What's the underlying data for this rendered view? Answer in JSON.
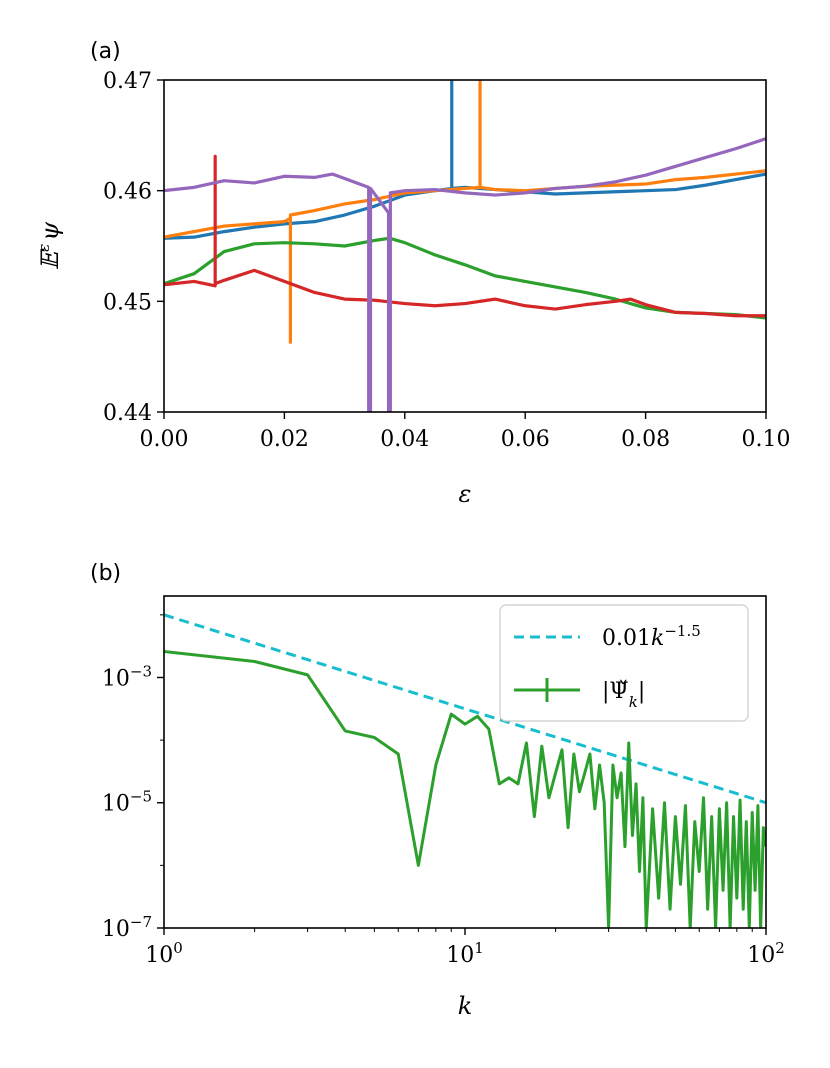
{
  "chart_data": [
    {
      "type": "line",
      "panel_label": "(a)",
      "xlabel": "ε",
      "ylabel": "𝔼^ε ψ",
      "xlim": [
        0.0,
        0.1
      ],
      "ylim": [
        0.44,
        0.47
      ],
      "x_ticks": [
        "0.00",
        "0.02",
        "0.04",
        "0.06",
        "0.08",
        "0.10"
      ],
      "x_tick_values": [
        0.0,
        0.02,
        0.04,
        0.06,
        0.08,
        0.1
      ],
      "y_ticks": [
        "0.44",
        "0.45",
        "0.46",
        "0.47"
      ],
      "y_tick_values": [
        0.44,
        0.45,
        0.46,
        0.47
      ],
      "series": [
        {
          "color": "#1f77b4",
          "points": [
            [
              0.0,
              0.4557
            ],
            [
              0.005,
              0.4558
            ],
            [
              0.01,
              0.4563
            ],
            [
              0.015,
              0.4567
            ],
            [
              0.02,
              0.457
            ],
            [
              0.025,
              0.4572
            ],
            [
              0.03,
              0.4578
            ],
            [
              0.035,
              0.4586
            ],
            [
              0.04,
              0.4596
            ],
            [
              0.045,
              0.46
            ],
            [
              0.0478,
              0.4602
            ],
            [
              0.0478,
              0.475
            ],
            [
              0.0478,
              0.4602
            ],
            [
              0.05,
              0.4603
            ],
            [
              0.055,
              0.4601
            ],
            [
              0.06,
              0.4599
            ],
            [
              0.065,
              0.4597
            ],
            [
              0.07,
              0.4598
            ],
            [
              0.075,
              0.4599
            ],
            [
              0.08,
              0.46
            ],
            [
              0.085,
              0.4601
            ],
            [
              0.09,
              0.4605
            ],
            [
              0.095,
              0.461
            ],
            [
              0.1,
              0.4615
            ]
          ]
        },
        {
          "color": "#ff7f0e",
          "points": [
            [
              0.0,
              0.4558
            ],
            [
              0.005,
              0.4563
            ],
            [
              0.01,
              0.4568
            ],
            [
              0.015,
              0.457
            ],
            [
              0.02,
              0.4572
            ],
            [
              0.021,
              0.4575
            ],
            [
              0.021,
              0.4463
            ],
            [
              0.021,
              0.4578
            ],
            [
              0.025,
              0.4582
            ],
            [
              0.03,
              0.4588
            ],
            [
              0.035,
              0.4592
            ],
            [
              0.04,
              0.4598
            ],
            [
              0.045,
              0.46
            ],
            [
              0.05,
              0.4602
            ],
            [
              0.0525,
              0.4603
            ],
            [
              0.0525,
              0.475
            ],
            [
              0.0525,
              0.4603
            ],
            [
              0.055,
              0.4601
            ],
            [
              0.06,
              0.46
            ],
            [
              0.065,
              0.4602
            ],
            [
              0.07,
              0.4604
            ],
            [
              0.075,
              0.4605
            ],
            [
              0.08,
              0.4606
            ],
            [
              0.085,
              0.461
            ],
            [
              0.09,
              0.4612
            ],
            [
              0.095,
              0.4615
            ],
            [
              0.1,
              0.4618
            ]
          ]
        },
        {
          "color": "#2ca02c",
          "points": [
            [
              0.0,
              0.4516
            ],
            [
              0.005,
              0.4525
            ],
            [
              0.01,
              0.4545
            ],
            [
              0.015,
              0.4552
            ],
            [
              0.02,
              0.4553
            ],
            [
              0.025,
              0.4552
            ],
            [
              0.03,
              0.455
            ],
            [
              0.035,
              0.4555
            ],
            [
              0.0375,
              0.4557
            ],
            [
              0.04,
              0.4553
            ],
            [
              0.045,
              0.4542
            ],
            [
              0.05,
              0.4533
            ],
            [
              0.055,
              0.4523
            ],
            [
              0.06,
              0.4518
            ],
            [
              0.065,
              0.4513
            ],
            [
              0.07,
              0.4508
            ],
            [
              0.075,
              0.4502
            ],
            [
              0.08,
              0.4494
            ],
            [
              0.085,
              0.449
            ],
            [
              0.09,
              0.4489
            ],
            [
              0.095,
              0.4488
            ],
            [
              0.1,
              0.4485
            ]
          ]
        },
        {
          "color": "#d62728",
          "points": [
            [
              0.0,
              0.4515
            ],
            [
              0.005,
              0.4518
            ],
            [
              0.0085,
              0.4514
            ],
            [
              0.0085,
              0.4631
            ],
            [
              0.0085,
              0.4516
            ],
            [
              0.01,
              0.4519
            ],
            [
              0.015,
              0.4528
            ],
            [
              0.02,
              0.4518
            ],
            [
              0.025,
              0.4508
            ],
            [
              0.03,
              0.4502
            ],
            [
              0.035,
              0.4501
            ],
            [
              0.04,
              0.4498
            ],
            [
              0.045,
              0.4496
            ],
            [
              0.05,
              0.4498
            ],
            [
              0.055,
              0.4502
            ],
            [
              0.06,
              0.4496
            ],
            [
              0.065,
              0.4493
            ],
            [
              0.07,
              0.4497
            ],
            [
              0.075,
              0.45
            ],
            [
              0.0775,
              0.4502
            ],
            [
              0.08,
              0.4497
            ],
            [
              0.085,
              0.449
            ],
            [
              0.09,
              0.4489
            ],
            [
              0.095,
              0.4487
            ],
            [
              0.1,
              0.4487
            ]
          ]
        },
        {
          "color": "#9467bd",
          "points": [
            [
              0.0,
              0.46
            ],
            [
              0.005,
              0.4603
            ],
            [
              0.01,
              0.4609
            ],
            [
              0.015,
              0.4607
            ],
            [
              0.02,
              0.4613
            ],
            [
              0.025,
              0.4612
            ],
            [
              0.028,
              0.4615
            ],
            [
              0.03,
              0.4611
            ],
            [
              0.034,
              0.4603
            ],
            [
              0.034,
              0.438
            ],
            [
              0.0343,
              0.438
            ],
            [
              0.0343,
              0.4602
            ],
            [
              0.0373,
              0.458
            ],
            [
              0.0373,
              0.438
            ],
            [
              0.0376,
              0.438
            ],
            [
              0.0376,
              0.4598
            ],
            [
              0.04,
              0.46
            ],
            [
              0.045,
              0.4601
            ],
            [
              0.05,
              0.4598
            ],
            [
              0.055,
              0.4596
            ],
            [
              0.06,
              0.4598
            ],
            [
              0.065,
              0.4602
            ],
            [
              0.07,
              0.4604
            ],
            [
              0.075,
              0.4608
            ],
            [
              0.08,
              0.4614
            ],
            [
              0.085,
              0.4622
            ],
            [
              0.09,
              0.463
            ],
            [
              0.095,
              0.4638
            ],
            [
              0.1,
              0.4647
            ]
          ]
        }
      ]
    },
    {
      "type": "line",
      "panel_label": "(b)",
      "xlabel": "k",
      "xscale": "log",
      "yscale": "log",
      "xlim": [
        1,
        100
      ],
      "ylim": [
        1e-07,
        0.02
      ],
      "x_ticks": [
        "10^0",
        "10^1",
        "10^2"
      ],
      "x_tick_values": [
        1,
        10,
        100
      ],
      "y_ticks": [
        "10^-3",
        "10^-5",
        "10^-7"
      ],
      "y_tick_values": [
        0.001,
        1e-05,
        1e-07
      ],
      "legend_position": "top-right",
      "series": [
        {
          "name": "0.01k^{-1.5}",
          "color": "#17becf",
          "dash": true,
          "formula": "0.01*k^-1.5"
        },
        {
          "name": "|Ψ̌_k|",
          "color": "#2ca02c",
          "points": [
            [
              1,
              0.0026
            ],
            [
              2,
              0.0018
            ],
            [
              3,
              0.0011
            ],
            [
              4,
              0.00014
            ],
            [
              5,
              0.00011
            ],
            [
              6,
              6e-05
            ],
            [
              7,
              1e-06
            ],
            [
              8,
              4e-05
            ],
            [
              9,
              0.00026
            ],
            [
              10,
              0.00018
            ],
            [
              11,
              0.00024
            ],
            [
              12,
              0.00015
            ],
            [
              13,
              2e-05
            ],
            [
              14,
              2.5e-05
            ],
            [
              15,
              2e-05
            ],
            [
              16,
              9e-05
            ],
            [
              17,
              6e-06
            ],
            [
              18,
              8e-05
            ],
            [
              19,
              1.2e-05
            ],
            [
              20,
              3e-05
            ],
            [
              21,
              7e-05
            ],
            [
              22,
              4e-06
            ],
            [
              23,
              6e-05
            ],
            [
              24,
              1.5e-05
            ],
            [
              25,
              3e-05
            ],
            [
              26,
              6e-05
            ],
            [
              27,
              8e-06
            ],
            [
              28,
              4e-05
            ],
            [
              29,
              1e-05
            ],
            [
              30,
              1e-07
            ],
            [
              31,
              4e-05
            ],
            [
              32,
              1.2e-05
            ],
            [
              33,
              3e-05
            ],
            [
              34,
              2e-06
            ],
            [
              35,
              9e-05
            ],
            [
              36,
              3e-06
            ],
            [
              37,
              2e-05
            ],
            [
              38,
              8e-07
            ],
            [
              39,
              1.2e-05
            ],
            [
              40,
              1e-07
            ],
            [
              42,
              8e-06
            ],
            [
              44,
              3e-07
            ],
            [
              46,
              1e-05
            ],
            [
              48,
              2e-07
            ],
            [
              50,
              6e-06
            ],
            [
              52,
              5e-07
            ],
            [
              54,
              9e-06
            ],
            [
              56,
              1e-07
            ],
            [
              58,
              5e-06
            ],
            [
              60,
              8e-07
            ],
            [
              62,
              1.2e-05
            ],
            [
              64,
              2e-07
            ],
            [
              66,
              6e-06
            ],
            [
              68,
              1e-07
            ],
            [
              70,
              8e-06
            ],
            [
              72,
              4e-07
            ],
            [
              74,
              1e-05
            ],
            [
              76,
              1e-07
            ],
            [
              78,
              6e-06
            ],
            [
              80,
              3e-07
            ],
            [
              82,
              1.1e-05
            ],
            [
              84,
              2e-07
            ],
            [
              86,
              5e-06
            ],
            [
              88,
              1e-07
            ],
            [
              90,
              7e-06
            ],
            [
              92,
              4e-07
            ],
            [
              94,
              9e-06
            ],
            [
              96,
              1e-07
            ],
            [
              98,
              4e-06
            ],
            [
              100,
              2e-06
            ]
          ]
        }
      ]
    }
  ]
}
